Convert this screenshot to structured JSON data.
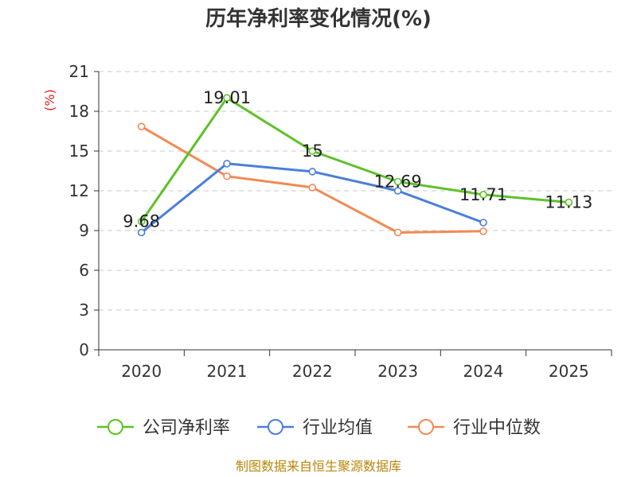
{
  "chart_data": {
    "type": "line",
    "title": "历年净利率变化情况(%)",
    "ylabel": "(%)",
    "xlabel": "",
    "categories": [
      "2020",
      "2021",
      "2022",
      "2023",
      "2024",
      "2025"
    ],
    "ylim": [
      0,
      21
    ],
    "yticks": [
      0,
      3,
      6,
      9,
      12,
      15,
      18,
      21
    ],
    "grid": true,
    "legend_position": "bottom",
    "series": [
      {
        "name": "公司净利率",
        "color": "#5cc228",
        "values": [
          9.68,
          19.01,
          15,
          12.69,
          11.71,
          11.13
        ],
        "labels": [
          "9.68",
          "19.01",
          "15",
          "12.69",
          "11.71",
          "11.13"
        ]
      },
      {
        "name": "行业均值",
        "color": "#4a7fd8",
        "values": [
          8.85,
          14.05,
          13.45,
          12.0,
          9.6,
          null
        ]
      },
      {
        "name": "行业中位数",
        "color": "#f28a55",
        "values": [
          16.85,
          13.1,
          12.25,
          8.85,
          8.95,
          null
        ]
      }
    ],
    "source": "制图数据来自恒生聚源数据库"
  }
}
